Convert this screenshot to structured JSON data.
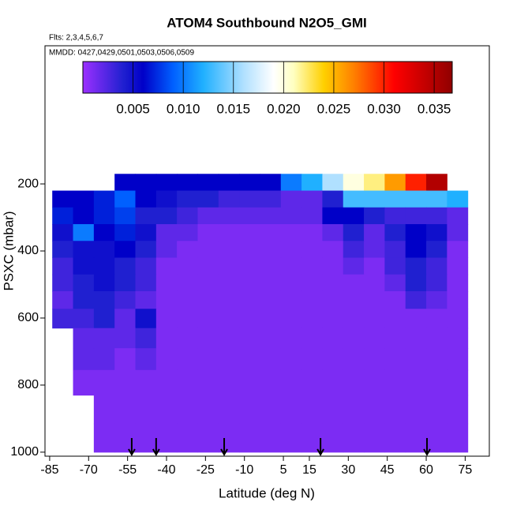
{
  "chart_data": {
    "type": "curtain",
    "title": "ATOM4 Southbound N2O5_GMI",
    "subtitle": "Flts: 2,3,4,5,6,7",
    "annotation": "MMDD: 0427,0429,0501,0503,0506,0509",
    "x_label": "Latitude (deg N)",
    "y_label": "PSXC (mbar)",
    "xlim": [
      -86.8,
      84.3
    ],
    "xticks": [
      -85,
      -70,
      -55,
      -40,
      -25,
      -10,
      5,
      15,
      30,
      45,
      60,
      75
    ],
    "ylim": [
      1012,
      -212
    ],
    "yticks": [
      200,
      400,
      600,
      800,
      1000
    ],
    "colorbar_lim": [
      0,
      0.0368
    ],
    "colorbar_ticks": [
      0.005,
      {
        "value": 0.01,
        "label": "0.010"
      },
      0.015,
      {
        "value": 0.02,
        "label": "0.020"
      },
      0.025,
      {
        "value": 0.03,
        "label": "0.030"
      },
      0.035
    ],
    "colormap": [
      [
        0,
        "#9b30ff"
      ],
      [
        0.004,
        "#2020d0"
      ],
      [
        0.006,
        "#0000c8"
      ],
      [
        0.009,
        "#0060ff"
      ],
      [
        0.012,
        "#20b0ff"
      ],
      [
        0.016,
        "#b0e0ff"
      ],
      [
        0.019,
        "#ffffff"
      ],
      [
        0.021,
        "#ffffc0"
      ],
      [
        0.024,
        "#ffd000"
      ],
      [
        0.027,
        "#ff8000"
      ],
      [
        0.031,
        "#ff0000"
      ],
      [
        0.0368,
        "#900000"
      ]
    ],
    "x": [
      -80,
      -72,
      -64,
      -56,
      -48,
      -40,
      -32,
      -24,
      -16,
      -8,
      0,
      8,
      16,
      24,
      32,
      40,
      48,
      56,
      64,
      72
    ],
    "levels": [
      195,
      245,
      295,
      345,
      395,
      445,
      495,
      545,
      600,
      660,
      720,
      790,
      870,
      960
    ],
    "z": [
      [
        null,
        null,
        null,
        0.006,
        0.006,
        0.006,
        0.006,
        0.006,
        0.006,
        0.006,
        0.006,
        0.01,
        0.012,
        0.016,
        0.02,
        0.022,
        0.026,
        0.03,
        0.035,
        null
      ],
      [
        0.006,
        0.006,
        0.007,
        0.009,
        0.006,
        0.005,
        0.004,
        0.004,
        0.003,
        0.003,
        0.003,
        0.002,
        0.002,
        0.004,
        0.013,
        0.013,
        0.013,
        0.013,
        0.013,
        0.012
      ],
      [
        0.007,
        0.006,
        0.007,
        0.008,
        0.004,
        0.004,
        0.003,
        0.002,
        0.002,
        0.002,
        0.002,
        0.002,
        0.002,
        0.006,
        0.006,
        0.004,
        0.003,
        0.003,
        0.003,
        0.002
      ],
      [
        0.005,
        0.01,
        0.006,
        0.007,
        0.005,
        0.002,
        0.002,
        0.001,
        0.001,
        0.001,
        0.001,
        0.001,
        0.001,
        0.002,
        0.004,
        0.002,
        0.004,
        0.006,
        0.005,
        0.002
      ],
      [
        0.004,
        0.005,
        0.005,
        0.006,
        0.004,
        0.002,
        0.001,
        0.001,
        0.001,
        0.001,
        0.001,
        0.001,
        0.001,
        0.001,
        0.003,
        0.002,
        0.003,
        0.006,
        0.004,
        0.001
      ],
      [
        0.003,
        0.005,
        0.005,
        0.004,
        0.003,
        0.001,
        0.001,
        0.001,
        0.001,
        0.001,
        0.001,
        0.001,
        0.001,
        0.001,
        0.002,
        0.001,
        0.003,
        0.004,
        0.003,
        0.001
      ],
      [
        0.003,
        0.004,
        0.005,
        0.004,
        0.003,
        0.001,
        0.001,
        0.001,
        0.001,
        0.001,
        0.001,
        0.001,
        0.001,
        0.001,
        0.001,
        0.001,
        0.002,
        0.004,
        0.003,
        0.001
      ],
      [
        0.002,
        0.004,
        0.004,
        0.003,
        0.002,
        0.001,
        0.001,
        0.001,
        0.001,
        0.001,
        0.001,
        0.001,
        0.001,
        0.001,
        0.001,
        0.001,
        0.001,
        0.003,
        0.002,
        0.001
      ],
      [
        0.003,
        0.003,
        0.004,
        0.002,
        0.005,
        0.001,
        0.001,
        0.001,
        0.001,
        0.001,
        0.001,
        0.001,
        0.001,
        0.001,
        0.001,
        0.001,
        0.001,
        0.001,
        0.001,
        0.001
      ],
      [
        null,
        0.002,
        0.002,
        0.002,
        0.003,
        0.001,
        0.001,
        0.001,
        0.001,
        0.001,
        0.001,
        0.001,
        0.001,
        0.001,
        0.001,
        0.001,
        0.001,
        0.001,
        0.001,
        0.001
      ],
      [
        null,
        0.002,
        0.002,
        0.001,
        0.002,
        0.001,
        0.001,
        0.001,
        0.001,
        0.001,
        0.001,
        0.001,
        0.001,
        0.001,
        0.001,
        0.001,
        0.001,
        0.001,
        0.001,
        0.001
      ],
      [
        null,
        0.001,
        0.001,
        0.001,
        0.001,
        0.001,
        0.001,
        0.001,
        0.001,
        0.001,
        0.001,
        0.001,
        0.001,
        0.001,
        0.001,
        0.001,
        0.001,
        0.001,
        0.001,
        0.001
      ],
      [
        null,
        null,
        0.001,
        0.001,
        0.001,
        0.001,
        0.001,
        0.001,
        0.001,
        0.001,
        0.001,
        0.001,
        0.001,
        0.001,
        0.001,
        0.001,
        0.001,
        0.001,
        0.001,
        0.001
      ],
      [
        null,
        null,
        0.001,
        0.001,
        0.001,
        0.001,
        0.001,
        0.001,
        0.001,
        0.001,
        0.001,
        0.001,
        0.001,
        0.001,
        0.001,
        0.001,
        0.001,
        0.001,
        0.001,
        0.001
      ]
    ],
    "flight_markers_lat": [
      -53.4,
      -44,
      -17.8,
      19.3,
      60.3
    ]
  }
}
